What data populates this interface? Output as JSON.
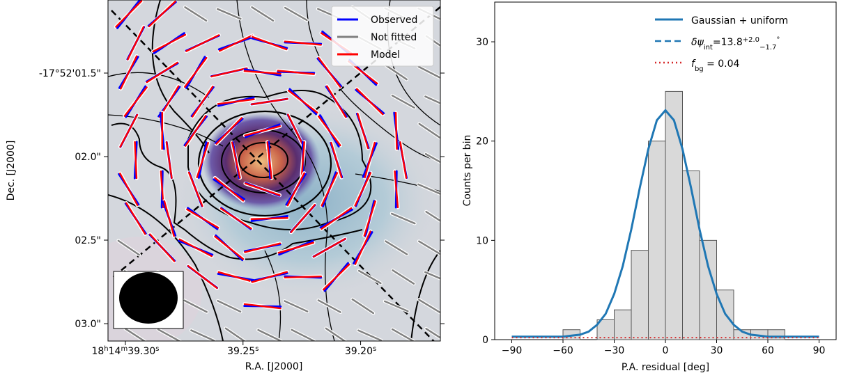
{
  "chart_data": [
    {
      "type": "image",
      "xlabel": "R.A. [J2000]",
      "ylabel": "Dec. [J2000]",
      "xlim": [
        39.3074,
        39.1661
      ],
      "ylim": [
        1.0625,
        3.104
      ],
      "xticks": [
        {
          "value": 39.3,
          "label": [
            "18",
            "h",
            "14",
            "m",
            "39.30",
            "s"
          ]
        },
        {
          "value": 39.25,
          "label": [
            "39.25",
            "s"
          ]
        },
        {
          "value": 39.2,
          "label": [
            "39.20",
            "s"
          ]
        }
      ],
      "yticks": [
        {
          "value": 1.5,
          "label": "-17°52'01.5\""
        },
        {
          "value": 2.0,
          "label": "02.0\""
        },
        {
          "value": 2.5,
          "label": "02.5\""
        },
        {
          "value": 3.0,
          "label": "03.0\""
        }
      ],
      "legend": [
        {
          "name": "Observed",
          "color": "#0000ff"
        },
        {
          "name": "Not fitted",
          "color": "#808080"
        },
        {
          "name": "Model",
          "color": "#ff0000"
        }
      ]
    },
    {
      "type": "histogram",
      "xlabel": "P.A. residual [deg]",
      "ylabel": "Counts per bin",
      "xlim": [
        -100,
        100
      ],
      "ylim": [
        0,
        34
      ],
      "xticks": [
        {
          "value": -90,
          "label": "−90"
        },
        {
          "value": -60,
          "label": "−60"
        },
        {
          "value": -30,
          "label": "−30"
        },
        0,
        30,
        60,
        90
      ],
      "yticks": [
        0,
        10,
        20,
        30
      ],
      "bins": [
        -90,
        -80,
        -70,
        -60,
        -50,
        -40,
        -30,
        -20,
        -10,
        0,
        10,
        20,
        30,
        40,
        50,
        60,
        70,
        80,
        90
      ],
      "counts": [
        0,
        0,
        0,
        1,
        0,
        2,
        3,
        9,
        20,
        25,
        17,
        10,
        5,
        1,
        1,
        1,
        0,
        0
      ],
      "bar_color": "#d9d9d9",
      "series": [
        {
          "name": "Gaussian + uniform",
          "color": "#1f77b4",
          "dash": "solid",
          "x": [
            -90,
            -85,
            -80,
            -75,
            -70,
            -65,
            -60,
            -55,
            -50,
            -45,
            -40,
            -35,
            -30,
            -25,
            -20,
            -15,
            -10,
            -5,
            0,
            5,
            10,
            15,
            20,
            25,
            30,
            35,
            40,
            45,
            50,
            55,
            60,
            65,
            70,
            75,
            80,
            85,
            90
          ],
          "values": [
            0.3,
            0.3,
            0.3,
            0.3,
            0.3,
            0.3,
            0.3,
            0.4,
            0.5,
            0.8,
            1.5,
            2.6,
            4.6,
            7.4,
            11.1,
            15.3,
            19.2,
            22.1,
            23.1,
            22.1,
            19.2,
            15.3,
            11.1,
            7.4,
            4.6,
            2.6,
            1.5,
            0.8,
            0.5,
            0.4,
            0.3,
            0.3,
            0.3,
            0.3,
            0.3,
            0.3,
            0.3
          ]
        },
        {
          "name": [
            "f",
            "bg",
            " = 0.04"
          ],
          "color": "#d62728",
          "dash": "dotted",
          "x": [
            -90,
            90
          ],
          "values": [
            0.2,
            0.2
          ]
        }
      ],
      "legend_extra": {
        "name": [
          "δψ",
          "int",
          "=13.8",
          "+2.0",
          "−1.7",
          "°"
        ],
        "color": "#1f77b4",
        "dash": "dashed"
      }
    }
  ]
}
